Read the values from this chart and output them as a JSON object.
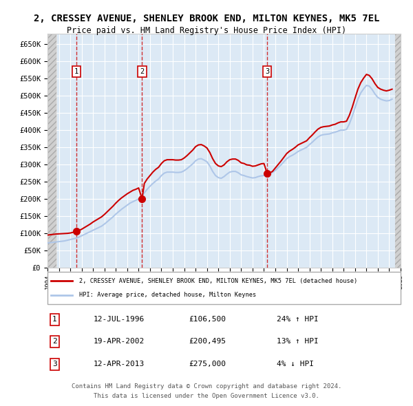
{
  "title1": "2, CRESSEY AVENUE, SHENLEY BROOK END, MILTON KEYNES, MK5 7EL",
  "title2": "Price paid vs. HM Land Registry's House Price Index (HPI)",
  "legend_line1": "2, CRESSEY AVENUE, SHENLEY BROOK END, MILTON KEYNES, MK5 7EL (detached house)",
  "legend_line2": "HPI: Average price, detached house, Milton Keynes",
  "footer1": "Contains HM Land Registry data © Crown copyright and database right 2024.",
  "footer2": "This data is licensed under the Open Government Licence v3.0.",
  "sales": [
    {
      "num": 1,
      "date": "12-JUL-1996",
      "price": 106500,
      "pct": "24%",
      "dir": "↑"
    },
    {
      "num": 2,
      "date": "19-APR-2002",
      "price": 200495,
      "pct": "13%",
      "dir": "↑"
    },
    {
      "num": 3,
      "date": "12-APR-2013",
      "price": 275000,
      "pct": "4%",
      "dir": "↓"
    }
  ],
  "sale_years": [
    1996.54,
    2002.3,
    2013.28
  ],
  "sale_prices": [
    106500,
    200495,
    275000
  ],
  "hpi_years": [
    1994.0,
    1994.25,
    1994.5,
    1994.75,
    1995.0,
    1995.25,
    1995.5,
    1995.75,
    1996.0,
    1996.25,
    1996.5,
    1996.75,
    1997.0,
    1997.25,
    1997.5,
    1997.75,
    1998.0,
    1998.25,
    1998.5,
    1998.75,
    1999.0,
    1999.25,
    1999.5,
    1999.75,
    2000.0,
    2000.25,
    2000.5,
    2000.75,
    2001.0,
    2001.25,
    2001.5,
    2001.75,
    2002.0,
    2002.25,
    2002.5,
    2002.75,
    2003.0,
    2003.25,
    2003.5,
    2003.75,
    2004.0,
    2004.25,
    2004.5,
    2004.75,
    2005.0,
    2005.25,
    2005.5,
    2005.75,
    2006.0,
    2006.25,
    2006.5,
    2006.75,
    2007.0,
    2007.25,
    2007.5,
    2007.75,
    2008.0,
    2008.25,
    2008.5,
    2008.75,
    2009.0,
    2009.25,
    2009.5,
    2009.75,
    2010.0,
    2010.25,
    2010.5,
    2010.75,
    2011.0,
    2011.25,
    2011.5,
    2011.75,
    2012.0,
    2012.25,
    2012.5,
    2012.75,
    2013.0,
    2013.25,
    2013.5,
    2013.75,
    2014.0,
    2014.25,
    2014.5,
    2014.75,
    2015.0,
    2015.25,
    2015.5,
    2015.75,
    2016.0,
    2016.25,
    2016.5,
    2016.75,
    2017.0,
    2017.25,
    2017.5,
    2017.75,
    2018.0,
    2018.25,
    2018.5,
    2018.75,
    2019.0,
    2019.25,
    2019.5,
    2019.75,
    2020.0,
    2020.25,
    2020.5,
    2020.75,
    2021.0,
    2021.25,
    2021.5,
    2021.75,
    2022.0,
    2022.25,
    2022.5,
    2022.75,
    2023.0,
    2023.25,
    2023.5,
    2023.75,
    2024.0,
    2024.25
  ],
  "hpi_values": [
    72000,
    73000,
    74000,
    75000,
    76000,
    77000,
    78000,
    80000,
    82000,
    84000,
    86000,
    89000,
    93000,
    97000,
    101000,
    105000,
    109000,
    113000,
    117000,
    121000,
    127000,
    134000,
    141000,
    148000,
    156000,
    163000,
    170000,
    176000,
    182000,
    188000,
    192000,
    196000,
    200000,
    207000,
    218000,
    228000,
    237000,
    245000,
    252000,
    258000,
    268000,
    275000,
    278000,
    278000,
    278000,
    277000,
    277000,
    278000,
    282000,
    288000,
    295000,
    302000,
    311000,
    316000,
    317000,
    313000,
    308000,
    296000,
    280000,
    268000,
    262000,
    260000,
    265000,
    272000,
    278000,
    280000,
    280000,
    276000,
    270000,
    268000,
    265000,
    263000,
    261000,
    262000,
    265000,
    267000,
    268000,
    270000,
    273000,
    277000,
    283000,
    291000,
    299000,
    308000,
    317000,
    323000,
    327000,
    332000,
    338000,
    342000,
    346000,
    350000,
    358000,
    365000,
    373000,
    380000,
    385000,
    387000,
    388000,
    389000,
    392000,
    394000,
    397000,
    400000,
    400000,
    402000,
    418000,
    440000,
    465000,
    490000,
    508000,
    520000,
    530000,
    528000,
    518000,
    505000,
    495000,
    490000,
    487000,
    485000,
    486000,
    490000
  ],
  "price_line_years": [
    1994.0,
    1994.25,
    1994.5,
    1994.75,
    1995.0,
    1995.25,
    1995.5,
    1995.75,
    1996.0,
    1996.25,
    1996.5,
    1996.54,
    1996.75,
    1997.0,
    1997.25,
    1997.5,
    1997.75,
    1998.0,
    1998.25,
    1998.5,
    1998.75,
    1999.0,
    1999.25,
    1999.5,
    1999.75,
    2000.0,
    2000.25,
    2000.5,
    2000.75,
    2001.0,
    2001.25,
    2001.5,
    2001.75,
    2002.0,
    2002.3,
    2002.5,
    2002.75,
    2003.0,
    2003.25,
    2003.5,
    2003.75,
    2004.0,
    2004.25,
    2004.5,
    2004.75,
    2005.0,
    2005.25,
    2005.5,
    2005.75,
    2006.0,
    2006.25,
    2006.5,
    2006.75,
    2007.0,
    2007.25,
    2007.5,
    2007.75,
    2008.0,
    2008.25,
    2008.5,
    2008.75,
    2009.0,
    2009.25,
    2009.5,
    2009.75,
    2010.0,
    2010.25,
    2010.5,
    2010.75,
    2011.0,
    2011.25,
    2011.5,
    2011.75,
    2012.0,
    2012.25,
    2012.5,
    2012.75,
    2013.0,
    2013.28,
    2013.5,
    2013.75,
    2014.0,
    2014.25,
    2014.5,
    2014.75,
    2015.0,
    2015.25,
    2015.5,
    2015.75,
    2016.0,
    2016.25,
    2016.5,
    2016.75,
    2017.0,
    2017.25,
    2017.5,
    2017.75,
    2018.0,
    2018.25,
    2018.5,
    2018.75,
    2019.0,
    2019.25,
    2019.5,
    2019.75,
    2020.0,
    2020.25,
    2020.5,
    2020.75,
    2021.0,
    2021.25,
    2021.5,
    2021.75,
    2022.0,
    2022.25,
    2022.5,
    2022.75,
    2023.0,
    2023.25,
    2023.5,
    2023.75,
    2024.0,
    2024.25
  ],
  "price_line_values": [
    95000,
    96000,
    97000,
    98000,
    98500,
    99000,
    99500,
    100000,
    101000,
    103000,
    105000,
    106500,
    108000,
    112000,
    117000,
    122000,
    127000,
    133000,
    138000,
    143000,
    148000,
    155000,
    163000,
    171000,
    179000,
    188000,
    196000,
    203000,
    209000,
    215000,
    220000,
    225000,
    228000,
    232000,
    200495,
    245000,
    258000,
    268000,
    278000,
    286000,
    292000,
    303000,
    311000,
    314000,
    314000,
    314000,
    313000,
    313000,
    314000,
    319000,
    326000,
    334000,
    342000,
    352000,
    357000,
    358000,
    354000,
    348000,
    335000,
    317000,
    303000,
    296000,
    294000,
    299000,
    308000,
    314000,
    316000,
    316000,
    312000,
    305000,
    303000,
    299000,
    298000,
    295000,
    296000,
    299000,
    302000,
    303000,
    275000,
    275500,
    280000,
    290000,
    300000,
    310000,
    321000,
    332000,
    339000,
    344000,
    350000,
    357000,
    361000,
    365000,
    369000,
    378000,
    386000,
    395000,
    403000,
    408000,
    410000,
    411000,
    412000,
    415000,
    417000,
    421000,
    424000,
    424000,
    426000,
    443000,
    466000,
    493000,
    519000,
    538000,
    551000,
    562000,
    559000,
    549000,
    535000,
    524000,
    519000,
    516000,
    514000,
    516000,
    519000
  ],
  "xlim": [
    1994.0,
    2025.0
  ],
  "ylim": [
    0,
    680000
  ],
  "yticks": [
    0,
    50000,
    100000,
    150000,
    200000,
    250000,
    300000,
    350000,
    400000,
    450000,
    500000,
    550000,
    600000,
    650000
  ],
  "xticks": [
    1994,
    1995,
    1996,
    1997,
    1998,
    1999,
    2000,
    2001,
    2002,
    2003,
    2004,
    2005,
    2006,
    2007,
    2008,
    2009,
    2010,
    2011,
    2012,
    2013,
    2014,
    2015,
    2016,
    2017,
    2018,
    2019,
    2020,
    2021,
    2022,
    2023,
    2024,
    2025
  ],
  "hpi_color": "#aec6e8",
  "price_color": "#cc0000",
  "sale_dot_color": "#cc0000",
  "sale_vline_color": "#cc0000",
  "sale_label_color": "#cc0000",
  "bg_plot_color": "#dce9f5",
  "hatch_color": "#c0c0c0",
  "grid_color": "#ffffff",
  "border_color": "#cccccc"
}
